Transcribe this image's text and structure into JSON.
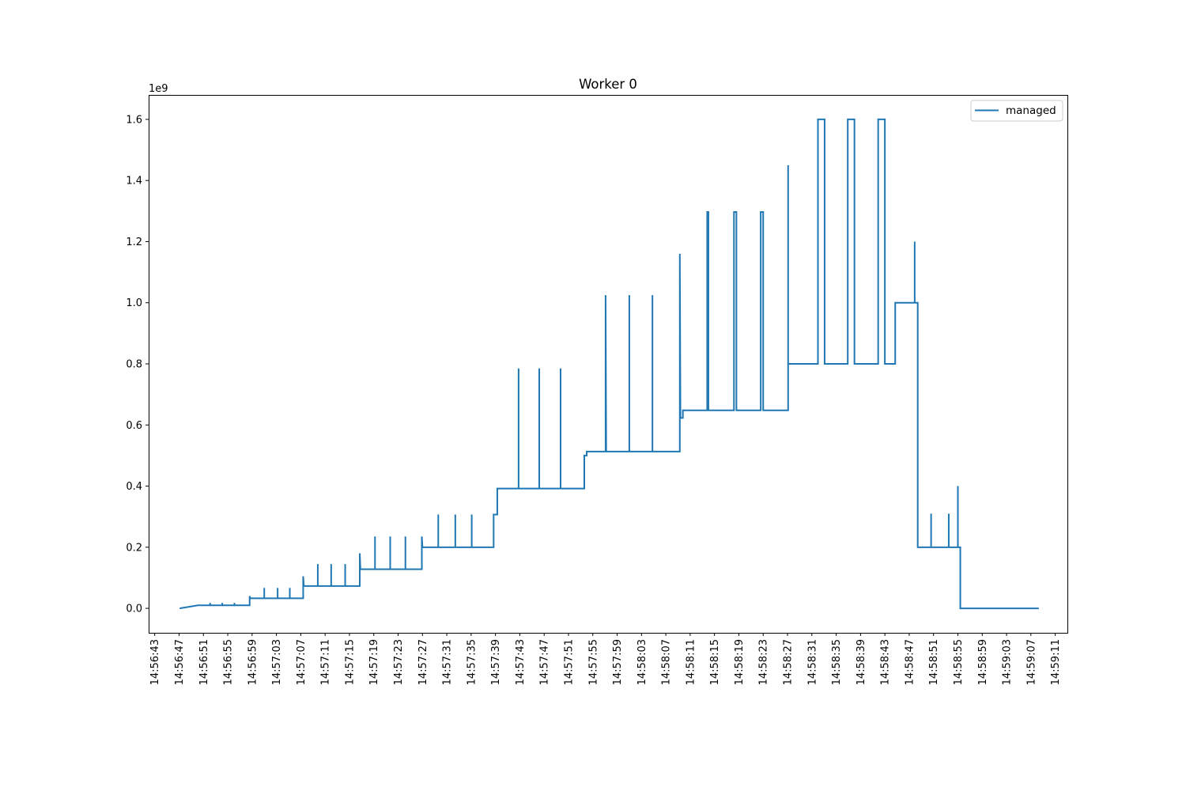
{
  "chart_data": {
    "type": "line",
    "step": true,
    "title": "Worker 0",
    "xlabel": "",
    "ylabel": "",
    "y_offset_text": "1e9",
    "y_multiplier": 1000000000,
    "xlim": [
      "14:56:42",
      "14:59:13"
    ],
    "ylim": [
      -0.08,
      1.68
    ],
    "x_ticks": [
      "14:56:43",
      "14:56:47",
      "14:56:51",
      "14:56:55",
      "14:56:59",
      "14:57:03",
      "14:57:07",
      "14:57:11",
      "14:57:15",
      "14:57:19",
      "14:57:23",
      "14:57:27",
      "14:57:31",
      "14:57:35",
      "14:57:39",
      "14:57:43",
      "14:57:47",
      "14:57:51",
      "14:57:55",
      "14:57:59",
      "14:58:03",
      "14:58:07",
      "14:58:11",
      "14:58:15",
      "14:58:19",
      "14:58:23",
      "14:58:27",
      "14:58:31",
      "14:58:35",
      "14:58:39",
      "14:58:43",
      "14:58:47",
      "14:58:51",
      "14:58:55",
      "14:58:59",
      "14:59:03",
      "14:59:07",
      "14:59:11"
    ],
    "y_ticks": [
      "0.0",
      "0.2",
      "0.4",
      "0.6",
      "0.8",
      "1.0",
      "1.2",
      "1.4",
      "1.6"
    ],
    "grid": false,
    "legend_position": "upper right",
    "series": [
      {
        "name": "managed",
        "color": "#1f77b4",
        "points": [
          [
            "14:56:47.1",
            0.0
          ],
          [
            "14:56:50.1",
            0.01
          ],
          [
            "14:56:52.1",
            0.01
          ],
          [
            "14:56:52.1",
            0.018
          ],
          [
            "14:56:52.1",
            0.01
          ],
          [
            "14:56:54.1",
            0.01
          ],
          [
            "14:56:54.1",
            0.018
          ],
          [
            "14:56:54.1",
            0.01
          ],
          [
            "14:56:56.1",
            0.01
          ],
          [
            "14:56:56.1",
            0.018
          ],
          [
            "14:56:56.1",
            0.01
          ],
          [
            "14:56:58.6",
            0.01
          ],
          [
            "14:56:58.6",
            0.04
          ],
          [
            "14:56:58.7",
            0.033
          ],
          [
            "14:57:01.0",
            0.033
          ],
          [
            "14:57:01.0",
            0.067
          ],
          [
            "14:57:01.0",
            0.033
          ],
          [
            "14:57:03.2",
            0.033
          ],
          [
            "14:57:03.2",
            0.067
          ],
          [
            "14:57:03.2",
            0.033
          ],
          [
            "14:57:05.2",
            0.033
          ],
          [
            "14:57:05.2",
            0.067
          ],
          [
            "14:57:05.2",
            0.033
          ],
          [
            "14:57:07.4",
            0.033
          ],
          [
            "14:57:07.4",
            0.105
          ],
          [
            "14:57:07.5",
            0.073
          ],
          [
            "14:57:09.8",
            0.073
          ],
          [
            "14:57:09.8",
            0.145
          ],
          [
            "14:57:09.8",
            0.073
          ],
          [
            "14:57:12.0",
            0.073
          ],
          [
            "14:57:12.0",
            0.145
          ],
          [
            "14:57:12.0",
            0.073
          ],
          [
            "14:57:14.3",
            0.073
          ],
          [
            "14:57:14.3",
            0.145
          ],
          [
            "14:57:14.3",
            0.073
          ],
          [
            "14:57:16.7",
            0.073
          ],
          [
            "14:57:16.7",
            0.18
          ],
          [
            "14:57:16.8",
            0.128
          ],
          [
            "14:57:19.2",
            0.128
          ],
          [
            "14:57:19.2",
            0.235
          ],
          [
            "14:57:19.2",
            0.128
          ],
          [
            "14:57:21.7",
            0.128
          ],
          [
            "14:57:21.7",
            0.235
          ],
          [
            "14:57:21.7",
            0.128
          ],
          [
            "14:57:24.2",
            0.128
          ],
          [
            "14:57:24.2",
            0.235
          ],
          [
            "14:57:24.2",
            0.128
          ],
          [
            "14:57:26.9",
            0.128
          ],
          [
            "14:57:26.9",
            0.235
          ],
          [
            "14:57:27.0",
            0.2
          ],
          [
            "14:57:29.6",
            0.2
          ],
          [
            "14:57:29.6",
            0.307
          ],
          [
            "14:57:29.6",
            0.2
          ],
          [
            "14:57:32.4",
            0.2
          ],
          [
            "14:57:32.4",
            0.307
          ],
          [
            "14:57:32.4",
            0.2
          ],
          [
            "14:57:35.1",
            0.2
          ],
          [
            "14:57:35.1",
            0.307
          ],
          [
            "14:57:35.1",
            0.2
          ],
          [
            "14:57:38.7",
            0.2
          ],
          [
            "14:57:38.7",
            0.307
          ],
          [
            "14:57:39.3",
            0.307
          ],
          [
            "14:57:39.3",
            0.392
          ],
          [
            "14:57:42.8",
            0.392
          ],
          [
            "14:57:42.8",
            0.785
          ],
          [
            "14:57:42.8",
            0.392
          ],
          [
            "14:57:46.2",
            0.392
          ],
          [
            "14:57:46.2",
            0.785
          ],
          [
            "14:57:46.2",
            0.392
          ],
          [
            "14:57:49.7",
            0.392
          ],
          [
            "14:57:49.7",
            0.785
          ],
          [
            "14:57:49.7",
            0.392
          ],
          [
            "14:57:53.6",
            0.392
          ],
          [
            "14:57:53.6",
            0.5
          ],
          [
            "14:57:54.0",
            0.5
          ],
          [
            "14:57:54.0",
            0.513
          ],
          [
            "14:57:57.1",
            0.513
          ],
          [
            "14:57:57.1",
            1.025
          ],
          [
            "14:57:57.2",
            0.513
          ],
          [
            "14:58:01.0",
            0.513
          ],
          [
            "14:58:01.0",
            1.025
          ],
          [
            "14:58:01.0",
            0.513
          ],
          [
            "14:58:04.8",
            0.513
          ],
          [
            "14:58:04.8",
            1.025
          ],
          [
            "14:58:04.8",
            0.513
          ],
          [
            "14:58:09.3",
            0.513
          ],
          [
            "14:58:09.3",
            1.16
          ],
          [
            "14:58:09.4",
            0.623
          ],
          [
            "14:58:09.8",
            0.623
          ],
          [
            "14:58:09.8",
            0.648
          ],
          [
            "14:58:13.8",
            0.648
          ],
          [
            "14:58:13.8",
            1.297
          ],
          [
            "14:58:14.0",
            1.297
          ],
          [
            "14:58:14.0",
            0.648
          ],
          [
            "14:58:18.2",
            0.648
          ],
          [
            "14:58:18.2",
            1.297
          ],
          [
            "14:58:18.6",
            1.297
          ],
          [
            "14:58:18.6",
            0.648
          ],
          [
            "14:58:22.6",
            0.648
          ],
          [
            "14:58:22.6",
            1.297
          ],
          [
            "14:58:23.0",
            1.297
          ],
          [
            "14:58:23.0",
            0.648
          ],
          [
            "14:58:27.1",
            0.648
          ],
          [
            "14:58:27.1",
            1.45
          ],
          [
            "14:58:27.1",
            0.8
          ],
          [
            "14:58:32.0",
            0.8
          ],
          [
            "14:58:32.0",
            1.6
          ],
          [
            "14:58:33.1",
            1.6
          ],
          [
            "14:58:33.1",
            0.8
          ],
          [
            "14:58:36.9",
            0.8
          ],
          [
            "14:58:36.9",
            1.6
          ],
          [
            "14:58:38.0",
            1.6
          ],
          [
            "14:58:38.0",
            0.8
          ],
          [
            "14:58:41.9",
            0.8
          ],
          [
            "14:58:41.9",
            1.6
          ],
          [
            "14:58:43.0",
            1.6
          ],
          [
            "14:58:43.0",
            0.8
          ],
          [
            "14:58:44.7",
            0.8
          ],
          [
            "14:58:44.7",
            1.0
          ],
          [
            "14:58:47.9",
            1.0
          ],
          [
            "14:58:47.9",
            1.2
          ],
          [
            "14:58:47.9",
            1.0
          ],
          [
            "14:58:48.4",
            1.0
          ],
          [
            "14:58:48.4",
            0.2
          ],
          [
            "14:58:50.6",
            0.2
          ],
          [
            "14:58:50.6",
            0.31
          ],
          [
            "14:58:50.6",
            0.2
          ],
          [
            "14:58:53.5",
            0.2
          ],
          [
            "14:58:53.5",
            0.31
          ],
          [
            "14:58:53.5",
            0.2
          ],
          [
            "14:58:55.0",
            0.2
          ],
          [
            "14:58:55.0",
            0.4
          ],
          [
            "14:58:55.0",
            0.2
          ],
          [
            "14:58:55.4",
            0.2
          ],
          [
            "14:58:55.4",
            0.0
          ],
          [
            "14:59:08.3",
            0.0
          ]
        ]
      }
    ]
  }
}
